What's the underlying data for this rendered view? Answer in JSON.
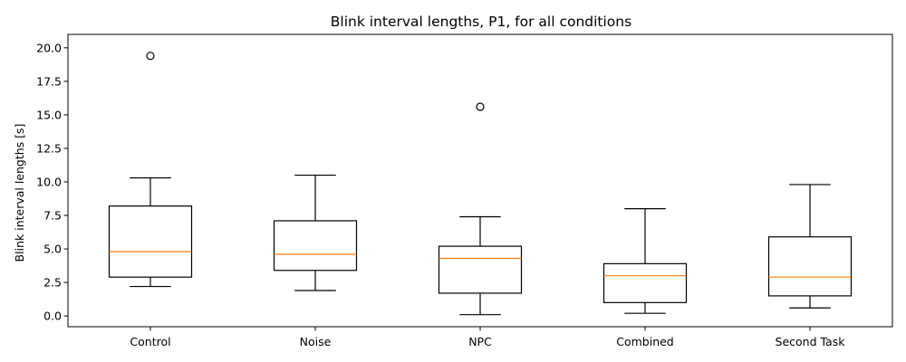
{
  "chart_data": {
    "type": "boxplot",
    "title": "Blink interval lengths, P1, for all conditions",
    "xlabel": "",
    "ylabel": "Blink interval lengths [s]",
    "ylim": [
      -0.8,
      21.0
    ],
    "yticks": [
      0.0,
      2.5,
      5.0,
      7.5,
      10.0,
      12.5,
      15.0,
      17.5,
      20.0
    ],
    "ytick_labels": [
      "0.0",
      "2.5",
      "5.0",
      "7.5",
      "10.0",
      "12.5",
      "15.0",
      "17.5",
      "20.0"
    ],
    "grid": false,
    "colors": {
      "box": "#000000",
      "median": "#ff7f0e"
    },
    "categories": [
      "Control",
      "Noise",
      "NPC",
      "Combined",
      "Second Task"
    ],
    "boxes": [
      {
        "whisker_low": 2.2,
        "q1": 2.9,
        "median": 4.8,
        "q3": 8.2,
        "whisker_high": 10.3,
        "outliers": [
          19.4
        ]
      },
      {
        "whisker_low": 1.9,
        "q1": 3.4,
        "median": 4.6,
        "q3": 7.1,
        "whisker_high": 10.5,
        "outliers": []
      },
      {
        "whisker_low": 0.1,
        "q1": 1.7,
        "median": 4.3,
        "q3": 5.2,
        "whisker_high": 7.4,
        "outliers": [
          15.6
        ]
      },
      {
        "whisker_low": 0.2,
        "q1": 1.0,
        "median": 3.0,
        "q3": 3.9,
        "whisker_high": 8.0,
        "outliers": []
      },
      {
        "whisker_low": 0.6,
        "q1": 1.5,
        "median": 2.9,
        "q3": 5.9,
        "whisker_high": 9.8,
        "outliers": []
      }
    ]
  }
}
